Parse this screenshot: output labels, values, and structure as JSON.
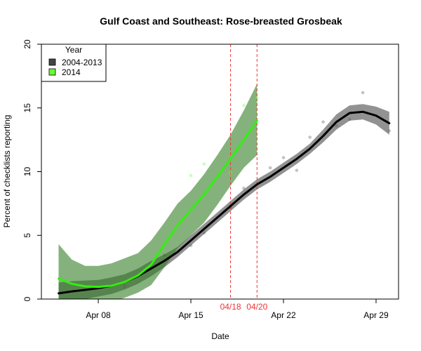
{
  "chart_data": {
    "type": "line",
    "title": "Gulf Coast and Southeast: Rose-breasted Grosbeak",
    "xlabel": "Date",
    "ylabel": "Percent of checklists reporting",
    "xlim": [
      3.7,
      30.7
    ],
    "ylim": [
      0,
      20
    ],
    "x_ticks": [
      {
        "value": 8,
        "label": "Apr 08"
      },
      {
        "value": 15,
        "label": "Apr 15"
      },
      {
        "value": 22,
        "label": "Apr 22"
      },
      {
        "value": 29,
        "label": "Apr 29"
      }
    ],
    "y_ticks": [
      0,
      5,
      10,
      15,
      20
    ],
    "legend": {
      "title": "Year",
      "position": "top-left",
      "entries": [
        {
          "label": "2004-2013",
          "color": "#444444"
        },
        {
          "label": "2014",
          "color": "#66ff33"
        }
      ]
    },
    "vlines": [
      {
        "x": 18,
        "label": "04/18",
        "color": "#ee3333"
      },
      {
        "x": 20,
        "label": "04/20",
        "color": "#ee3333"
      }
    ],
    "series": [
      {
        "name": "2004-2013",
        "color": "#000000",
        "band_color": "#444444",
        "x": [
          5,
          6,
          7,
          8,
          9,
          10,
          11,
          12,
          13,
          14,
          15,
          16,
          17,
          18,
          19,
          20,
          21,
          22,
          23,
          24,
          25,
          26,
          27,
          28,
          29,
          30
        ],
        "y": [
          0.45,
          0.6,
          0.72,
          0.85,
          1.05,
          1.35,
          1.8,
          2.4,
          3.0,
          3.7,
          4.6,
          5.5,
          6.4,
          7.3,
          8.2,
          9.0,
          9.6,
          10.3,
          11.0,
          11.8,
          12.8,
          13.9,
          14.6,
          14.7,
          14.4,
          13.8
        ],
        "lower": [
          -0.4,
          -0.2,
          0.0,
          0.2,
          0.4,
          0.75,
          1.2,
          1.8,
          2.5,
          3.3,
          4.2,
          5.1,
          6.0,
          6.9,
          7.8,
          8.6,
          9.2,
          9.9,
          10.6,
          11.4,
          12.3,
          13.3,
          14.0,
          14.1,
          13.7,
          12.9
        ],
        "upper": [
          1.3,
          1.4,
          1.45,
          1.5,
          1.7,
          1.95,
          2.4,
          3.0,
          3.5,
          4.1,
          5.0,
          5.9,
          6.8,
          7.7,
          8.6,
          9.4,
          10.0,
          10.7,
          11.4,
          12.2,
          13.3,
          14.5,
          15.2,
          15.3,
          15.1,
          14.7
        ],
        "points": [
          [
            10,
            1.0
          ],
          [
            13,
            3.45
          ],
          [
            15,
            4.2
          ],
          [
            16,
            5.2
          ],
          [
            18,
            7.2
          ],
          [
            19,
            8.7
          ],
          [
            21,
            10.3
          ],
          [
            22,
            11.1
          ],
          [
            23,
            10.1
          ],
          [
            24,
            12.7
          ],
          [
            25,
            13.9
          ],
          [
            26,
            13.6
          ],
          [
            27,
            14.1
          ],
          [
            28,
            16.2
          ],
          [
            30,
            13.2
          ]
        ]
      },
      {
        "name": "2014",
        "color": "#33ee11",
        "band_color": "#2d7a1e",
        "x": [
          5,
          6,
          7,
          8,
          9,
          10,
          11,
          12,
          13,
          14,
          15,
          16,
          17,
          18,
          19,
          20
        ],
        "y": [
          1.6,
          1.2,
          1.0,
          0.95,
          1.05,
          1.35,
          1.85,
          2.7,
          4.3,
          5.8,
          7.0,
          8.2,
          9.6,
          11.0,
          12.5,
          14.0
        ],
        "lower": [
          -0.4,
          -0.4,
          -0.3,
          -0.25,
          -0.2,
          0.1,
          0.5,
          1.1,
          2.5,
          4.0,
          5.0,
          6.0,
          7.4,
          8.9,
          10.3,
          11.3
        ],
        "upper": [
          4.3,
          3.1,
          2.6,
          2.6,
          2.8,
          3.2,
          3.6,
          4.6,
          6.0,
          7.5,
          8.5,
          9.8,
          11.3,
          12.9,
          14.8,
          16.9
        ],
        "points": [
          [
            15,
            9.7
          ],
          [
            16,
            10.6
          ],
          [
            18,
            9.9
          ],
          [
            19,
            15.2
          ],
          [
            20,
            15.8
          ]
        ]
      }
    ]
  }
}
